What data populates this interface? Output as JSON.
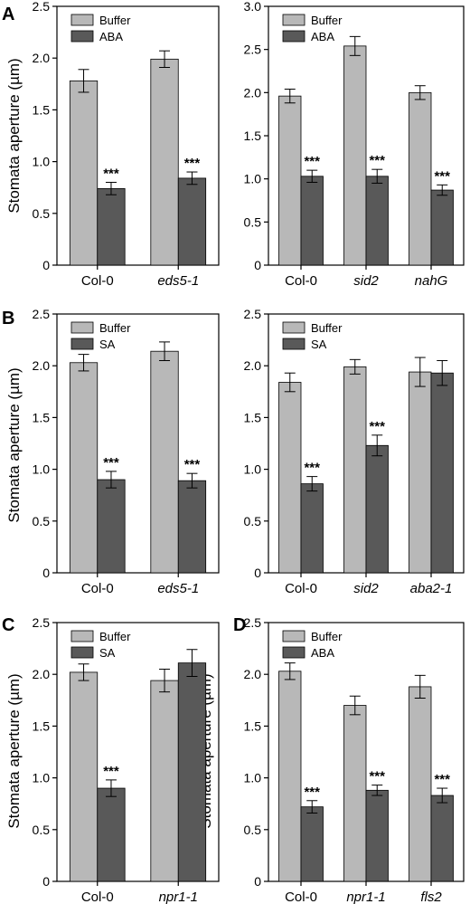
{
  "colors": {
    "light_bar": "#b8b8b8",
    "dark_bar": "#595959",
    "axis": "#000000"
  },
  "panel_labels": {
    "a": "A",
    "b": "B",
    "c": "C",
    "d": "D"
  },
  "ylabel": "Stomata aperture (µm)",
  "chart_data": [
    {
      "type": "bar",
      "panel": "A",
      "categories": [
        "Col-0",
        "eds5-1"
      ],
      "series": [
        {
          "name": "Buffer",
          "values": [
            1.78,
            1.99
          ],
          "errors": [
            0.11,
            0.08
          ]
        },
        {
          "name": "ABA",
          "values": [
            0.74,
            0.84
          ],
          "errors": [
            0.06,
            0.06
          ]
        }
      ],
      "significance": [
        "***",
        "***"
      ],
      "ylim": [
        0,
        2.5
      ],
      "yticks": [
        "0",
        "0.5",
        "1.0",
        "1.5",
        "2.0",
        "2.5"
      ],
      "legend_position": "top-left"
    },
    {
      "type": "bar",
      "panel": "A",
      "categories": [
        "Col-0",
        "sid2",
        "nahG"
      ],
      "series": [
        {
          "name": "Buffer",
          "values": [
            1.96,
            2.54,
            2.0
          ],
          "errors": [
            0.08,
            0.11,
            0.08
          ]
        },
        {
          "name": "ABA",
          "values": [
            1.03,
            1.03,
            0.87
          ],
          "errors": [
            0.07,
            0.08,
            0.06
          ]
        }
      ],
      "significance": [
        "***",
        "***",
        "***"
      ],
      "ylim": [
        0,
        3.0
      ],
      "yticks": [
        "0",
        "0.5",
        "1.0",
        "1.5",
        "2.0",
        "2.5",
        "3.0"
      ],
      "legend_position": "top-left"
    },
    {
      "type": "bar",
      "panel": "B",
      "categories": [
        "Col-0",
        "eds5-1"
      ],
      "series": [
        {
          "name": "Buffer",
          "values": [
            2.03,
            2.14
          ],
          "errors": [
            0.08,
            0.09
          ]
        },
        {
          "name": "SA",
          "values": [
            0.9,
            0.89
          ],
          "errors": [
            0.08,
            0.07
          ]
        }
      ],
      "significance": [
        "***",
        "***"
      ],
      "ylim": [
        0,
        2.5
      ],
      "yticks": [
        "0",
        "0.5",
        "1.0",
        "1.5",
        "2.0",
        "2.5"
      ],
      "legend_position": "top-left"
    },
    {
      "type": "bar",
      "panel": "B",
      "categories": [
        "Col-0",
        "sid2",
        "aba2-1"
      ],
      "series": [
        {
          "name": "Buffer",
          "values": [
            1.84,
            1.99,
            1.94
          ],
          "errors": [
            0.09,
            0.07,
            0.14
          ]
        },
        {
          "name": "SA",
          "values": [
            0.86,
            1.23,
            1.93
          ],
          "errors": [
            0.07,
            0.1,
            0.12
          ]
        }
      ],
      "significance": [
        "***",
        "***",
        ""
      ],
      "ylim": [
        0,
        2.5
      ],
      "yticks": [
        "0",
        "0.5",
        "1.0",
        "1.5",
        "2.0",
        "2.5"
      ],
      "legend_position": "top-left"
    },
    {
      "type": "bar",
      "panel": "C",
      "categories": [
        "Col-0",
        "npr1-1"
      ],
      "series": [
        {
          "name": "Buffer",
          "values": [
            2.02,
            1.94
          ],
          "errors": [
            0.08,
            0.11
          ]
        },
        {
          "name": "SA",
          "values": [
            0.9,
            2.11
          ],
          "errors": [
            0.08,
            0.13
          ]
        }
      ],
      "significance": [
        "***",
        ""
      ],
      "ylim": [
        0,
        2.5
      ],
      "yticks": [
        "0",
        "0.5",
        "1.0",
        "1.5",
        "2.0",
        "2.5"
      ],
      "legend_position": "top-left"
    },
    {
      "type": "bar",
      "panel": "D",
      "categories": [
        "Col-0",
        "npr1-1",
        "fls2"
      ],
      "series": [
        {
          "name": "Buffer",
          "values": [
            2.03,
            1.7,
            1.88
          ],
          "errors": [
            0.08,
            0.09,
            0.11
          ]
        },
        {
          "name": "ABA",
          "values": [
            0.72,
            0.88,
            0.83
          ],
          "errors": [
            0.06,
            0.05,
            0.07
          ]
        }
      ],
      "significance": [
        "***",
        "***",
        "***"
      ],
      "ylim": [
        0,
        2.5
      ],
      "yticks": [
        "0",
        "0.5",
        "1.0",
        "1.5",
        "2.0",
        "2.5"
      ],
      "legend_position": "top-left"
    }
  ]
}
